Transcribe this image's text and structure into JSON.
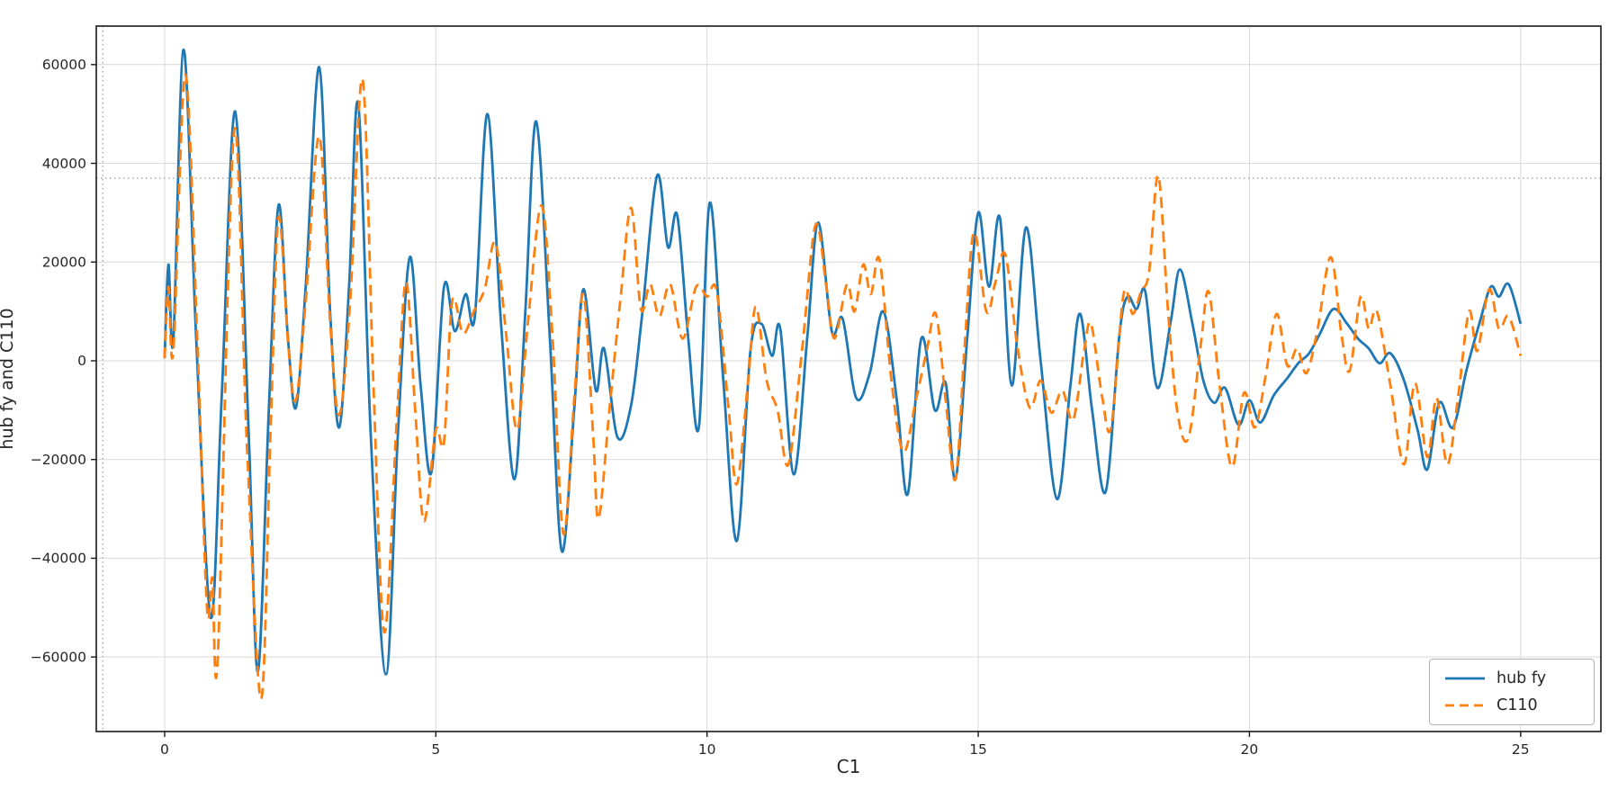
{
  "figure": {
    "background": "#ffffff"
  },
  "chart_data": {
    "type": "line",
    "title": "",
    "xlabel": "C1",
    "ylabel": "hub fy and C110",
    "xlim": [
      -1.26,
      26.48
    ],
    "ylim": [
      -75100,
      67800
    ],
    "xticks": [
      0,
      5,
      10,
      15,
      20,
      25
    ],
    "xtick_labels": [
      "0",
      "5",
      "10",
      "15",
      "20",
      "25"
    ],
    "yticks": [
      -60000,
      -40000,
      -20000,
      0,
      20000,
      40000,
      60000
    ],
    "ytick_labels": [
      "−60000",
      "−40000",
      "−20000",
      "0",
      "20000",
      "40000",
      "60000"
    ],
    "grid": true,
    "grid_color": "#d9d9d9",
    "axis_color": "#1a1a1a",
    "tick_label_color": "#262626",
    "legend_position": "lower right",
    "crosshair": {
      "x": -1.14,
      "y": 37000,
      "color": "#999999"
    },
    "series": [
      {
        "name": "hub fy",
        "color": "#1f77b4",
        "line_style": "solid",
        "line_width": 2.8,
        "points": [
          [
            0.0,
            500
          ],
          [
            0.07,
            19500
          ],
          [
            0.16,
            4000
          ],
          [
            0.35,
            63000
          ],
          [
            0.58,
            5000
          ],
          [
            0.85,
            -52000
          ],
          [
            1.05,
            -8000
          ],
          [
            1.3,
            50500
          ],
          [
            1.55,
            -15000
          ],
          [
            1.72,
            -63000
          ],
          [
            1.92,
            -10000
          ],
          [
            2.1,
            31500
          ],
          [
            2.27,
            5000
          ],
          [
            2.42,
            -9500
          ],
          [
            2.6,
            15000
          ],
          [
            2.85,
            59500
          ],
          [
            3.05,
            10000
          ],
          [
            3.22,
            -13500
          ],
          [
            3.4,
            15000
          ],
          [
            3.57,
            52000
          ],
          [
            3.8,
            -15000
          ],
          [
            4.08,
            -63500
          ],
          [
            4.3,
            -15000
          ],
          [
            4.52,
            21000
          ],
          [
            4.72,
            -5000
          ],
          [
            4.92,
            -22500
          ],
          [
            5.15,
            15000
          ],
          [
            5.35,
            6000
          ],
          [
            5.55,
            13500
          ],
          [
            5.72,
            9000
          ],
          [
            5.95,
            50000
          ],
          [
            6.2,
            8000
          ],
          [
            6.45,
            -24000
          ],
          [
            6.65,
            10000
          ],
          [
            6.85,
            48500
          ],
          [
            7.1,
            5000
          ],
          [
            7.32,
            -38500
          ],
          [
            7.55,
            -10000
          ],
          [
            7.72,
            14500
          ],
          [
            7.95,
            -6000
          ],
          [
            8.1,
            2500
          ],
          [
            8.35,
            -15500
          ],
          [
            8.6,
            -9000
          ],
          [
            8.8,
            9000
          ],
          [
            9.08,
            37500
          ],
          [
            9.28,
            23000
          ],
          [
            9.45,
            29500
          ],
          [
            9.65,
            5000
          ],
          [
            9.85,
            -13500
          ],
          [
            10.05,
            32000
          ],
          [
            10.3,
            -4000
          ],
          [
            10.55,
            -36500
          ],
          [
            10.8,
            2000
          ],
          [
            11.0,
            7500
          ],
          [
            11.2,
            1000
          ],
          [
            11.35,
            6500
          ],
          [
            11.6,
            -23000
          ],
          [
            11.85,
            5000
          ],
          [
            12.05,
            28000
          ],
          [
            12.3,
            6000
          ],
          [
            12.5,
            8500
          ],
          [
            12.75,
            -7500
          ],
          [
            13.0,
            -2500
          ],
          [
            13.25,
            10000
          ],
          [
            13.5,
            -8000
          ],
          [
            13.7,
            -27000
          ],
          [
            13.95,
            4500
          ],
          [
            14.2,
            -10000
          ],
          [
            14.4,
            -4500
          ],
          [
            14.58,
            -24000
          ],
          [
            14.8,
            5000
          ],
          [
            15.0,
            30000
          ],
          [
            15.2,
            15000
          ],
          [
            15.4,
            29000
          ],
          [
            15.62,
            -5000
          ],
          [
            15.88,
            27000
          ],
          [
            16.15,
            0
          ],
          [
            16.45,
            -28000
          ],
          [
            16.7,
            -5000
          ],
          [
            16.88,
            9500
          ],
          [
            17.1,
            -10000
          ],
          [
            17.35,
            -26500
          ],
          [
            17.6,
            5000
          ],
          [
            17.75,
            13000
          ],
          [
            17.92,
            10500
          ],
          [
            18.08,
            14000
          ],
          [
            18.3,
            -5500
          ],
          [
            18.55,
            8000
          ],
          [
            18.72,
            18500
          ],
          [
            18.95,
            7500
          ],
          [
            19.15,
            -4000
          ],
          [
            19.35,
            -8500
          ],
          [
            19.55,
            -5500
          ],
          [
            19.8,
            -13000
          ],
          [
            20.0,
            -8000
          ],
          [
            20.2,
            -12500
          ],
          [
            20.45,
            -7000
          ],
          [
            20.7,
            -3500
          ],
          [
            20.9,
            -500
          ],
          [
            21.1,
            1500
          ],
          [
            21.3,
            5500
          ],
          [
            21.55,
            10500
          ],
          [
            21.8,
            7500
          ],
          [
            22.0,
            4500
          ],
          [
            22.2,
            2500
          ],
          [
            22.4,
            -500
          ],
          [
            22.6,
            1500
          ],
          [
            22.85,
            -4000
          ],
          [
            23.1,
            -14000
          ],
          [
            23.28,
            -22000
          ],
          [
            23.5,
            -8500
          ],
          [
            23.75,
            -13500
          ],
          [
            24.0,
            -2000
          ],
          [
            24.25,
            8000
          ],
          [
            24.45,
            15000
          ],
          [
            24.6,
            13000
          ],
          [
            24.78,
            15500
          ],
          [
            25.0,
            7500
          ]
        ]
      },
      {
        "name": "C110",
        "color": "#ff7f0e",
        "line_style": "dashed",
        "line_width": 2.8,
        "points": [
          [
            0.0,
            500
          ],
          [
            0.07,
            15000
          ],
          [
            0.16,
            2000
          ],
          [
            0.38,
            58000
          ],
          [
            0.6,
            5000
          ],
          [
            0.78,
            -50000
          ],
          [
            0.88,
            -44000
          ],
          [
            0.98,
            -60000
          ],
          [
            1.28,
            46500
          ],
          [
            1.52,
            -18000
          ],
          [
            1.78,
            -68500
          ],
          [
            1.95,
            -15000
          ],
          [
            2.1,
            29000
          ],
          [
            2.28,
            3000
          ],
          [
            2.42,
            -8000
          ],
          [
            2.6,
            12000
          ],
          [
            2.85,
            45500
          ],
          [
            3.05,
            8000
          ],
          [
            3.22,
            -11000
          ],
          [
            3.42,
            12000
          ],
          [
            3.65,
            57000
          ],
          [
            3.85,
            -5000
          ],
          [
            4.05,
            -55000
          ],
          [
            4.28,
            -12000
          ],
          [
            4.45,
            16000
          ],
          [
            4.62,
            -10000
          ],
          [
            4.78,
            -32500
          ],
          [
            5.0,
            -14000
          ],
          [
            5.15,
            -16500
          ],
          [
            5.3,
            12000
          ],
          [
            5.5,
            5500
          ],
          [
            5.7,
            10000
          ],
          [
            5.9,
            14500
          ],
          [
            6.1,
            24000
          ],
          [
            6.3,
            5000
          ],
          [
            6.5,
            -14000
          ],
          [
            6.7,
            8000
          ],
          [
            6.95,
            31500
          ],
          [
            7.15,
            5000
          ],
          [
            7.35,
            -35000
          ],
          [
            7.55,
            -8000
          ],
          [
            7.72,
            13500
          ],
          [
            7.9,
            -15000
          ],
          [
            8.0,
            -32000
          ],
          [
            8.2,
            -10000
          ],
          [
            8.4,
            12000
          ],
          [
            8.6,
            31000
          ],
          [
            8.78,
            10500
          ],
          [
            8.95,
            15500
          ],
          [
            9.12,
            9000
          ],
          [
            9.32,
            15500
          ],
          [
            9.55,
            4500
          ],
          [
            9.8,
            15000
          ],
          [
            10.0,
            13000
          ],
          [
            10.18,
            14000
          ],
          [
            10.4,
            -10000
          ],
          [
            10.55,
            -25000
          ],
          [
            10.75,
            -5000
          ],
          [
            10.9,
            11000
          ],
          [
            11.1,
            -4000
          ],
          [
            11.3,
            -10000
          ],
          [
            11.5,
            -21000
          ],
          [
            11.75,
            2000
          ],
          [
            12.0,
            27500
          ],
          [
            12.2,
            15000
          ],
          [
            12.35,
            4500
          ],
          [
            12.58,
            15500
          ],
          [
            12.72,
            10000
          ],
          [
            12.88,
            19500
          ],
          [
            13.02,
            13500
          ],
          [
            13.18,
            20500
          ],
          [
            13.4,
            -4000
          ],
          [
            13.62,
            -18500
          ],
          [
            13.85,
            -8000
          ],
          [
            14.05,
            2000
          ],
          [
            14.22,
            9500
          ],
          [
            14.4,
            -8000
          ],
          [
            14.58,
            -24000
          ],
          [
            14.75,
            3000
          ],
          [
            14.92,
            26000
          ],
          [
            15.15,
            10000
          ],
          [
            15.32,
            16000
          ],
          [
            15.5,
            21500
          ],
          [
            15.72,
            3000
          ],
          [
            15.95,
            -9500
          ],
          [
            16.15,
            -4000
          ],
          [
            16.35,
            -10500
          ],
          [
            16.55,
            -6000
          ],
          [
            16.75,
            -12000
          ],
          [
            16.95,
            2000
          ],
          [
            17.08,
            7500
          ],
          [
            17.28,
            -7000
          ],
          [
            17.45,
            -13500
          ],
          [
            17.68,
            13500
          ],
          [
            17.85,
            9500
          ],
          [
            18.0,
            14000
          ],
          [
            18.15,
            18000
          ],
          [
            18.32,
            37500
          ],
          [
            18.5,
            10000
          ],
          [
            18.68,
            -11000
          ],
          [
            18.88,
            -15500
          ],
          [
            19.1,
            3000
          ],
          [
            19.25,
            14000
          ],
          [
            19.45,
            -5000
          ],
          [
            19.68,
            -21500
          ],
          [
            19.9,
            -6500
          ],
          [
            20.1,
            -13500
          ],
          [
            20.3,
            -3000
          ],
          [
            20.5,
            9500
          ],
          [
            20.7,
            -1000
          ],
          [
            20.88,
            2500
          ],
          [
            21.05,
            -2500
          ],
          [
            21.25,
            6000
          ],
          [
            21.5,
            21000
          ],
          [
            21.7,
            5000
          ],
          [
            21.85,
            -2000
          ],
          [
            22.05,
            13000
          ],
          [
            22.2,
            6500
          ],
          [
            22.35,
            10000
          ],
          [
            22.6,
            -5000
          ],
          [
            22.85,
            -21000
          ],
          [
            23.05,
            -4500
          ],
          [
            23.28,
            -19500
          ],
          [
            23.45,
            -7500
          ],
          [
            23.65,
            -21000
          ],
          [
            23.85,
            -7000
          ],
          [
            24.05,
            10000
          ],
          [
            24.2,
            2000
          ],
          [
            24.42,
            14500
          ],
          [
            24.6,
            6500
          ],
          [
            24.78,
            9000
          ],
          [
            25.0,
            1000
          ]
        ]
      }
    ]
  }
}
